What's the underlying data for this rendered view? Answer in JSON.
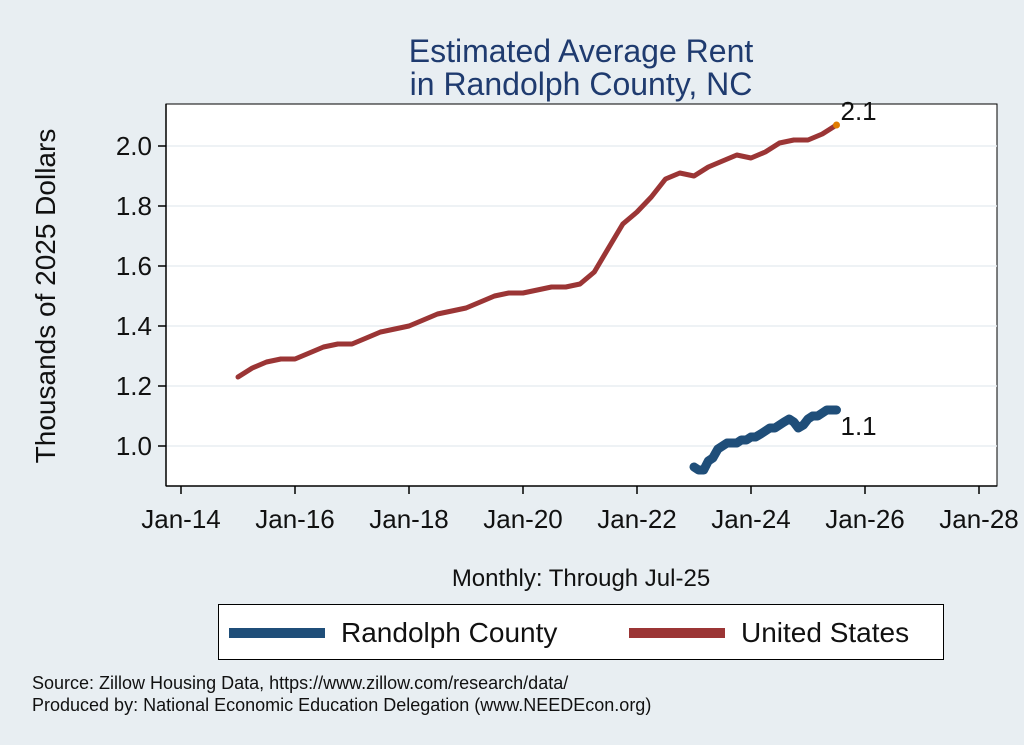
{
  "chart_data": {
    "type": "line",
    "title": [
      "Estimated Average Rent",
      "in Randolph County, NC"
    ],
    "xlabel": "Monthly: Through Jul-25",
    "ylabel": "Thousands of 2025 Dollars",
    "xlim": [
      2014,
      2028
    ],
    "ylim": [
      0.9,
      2.13
    ],
    "x_ticks": [
      2014,
      2016,
      2018,
      2020,
      2022,
      2024,
      2026,
      2028
    ],
    "x_tick_labels": [
      "Jan-14",
      "Jan-16",
      "Jan-18",
      "Jan-20",
      "Jan-22",
      "Jan-24",
      "Jan-26",
      "Jan-28"
    ],
    "y_ticks": [
      1.0,
      1.2,
      1.4,
      1.6,
      1.8,
      2.0
    ],
    "y_tick_labels": [
      "1.0",
      "1.2",
      "1.4",
      "1.6",
      "1.8",
      "2.0"
    ],
    "grid": true,
    "legend_position": "bottom",
    "series": [
      {
        "name": "Randolph County",
        "color": "#1f4e79",
        "end_label": "1.1",
        "x": [
          2023.0,
          2023.08,
          2023.17,
          2023.25,
          2023.33,
          2023.42,
          2023.5,
          2023.58,
          2023.67,
          2023.75,
          2023.83,
          2023.92,
          2024.0,
          2024.08,
          2024.17,
          2024.25,
          2024.33,
          2024.42,
          2024.5,
          2024.58,
          2024.67,
          2024.75,
          2024.83,
          2024.92,
          2025.0,
          2025.08,
          2025.17,
          2025.25,
          2025.33,
          2025.42,
          2025.5
        ],
        "y": [
          0.93,
          0.92,
          0.92,
          0.95,
          0.96,
          0.99,
          1.0,
          1.01,
          1.01,
          1.01,
          1.02,
          1.02,
          1.03,
          1.03,
          1.04,
          1.05,
          1.06,
          1.06,
          1.07,
          1.08,
          1.09,
          1.08,
          1.06,
          1.07,
          1.09,
          1.1,
          1.1,
          1.11,
          1.12,
          1.12,
          1.12
        ]
      },
      {
        "name": "United States",
        "color": "#9b3535",
        "end_label": "2.1",
        "x": [
          2015.0,
          2015.25,
          2015.5,
          2015.75,
          2016.0,
          2016.25,
          2016.5,
          2016.75,
          2017.0,
          2017.25,
          2017.5,
          2017.75,
          2018.0,
          2018.25,
          2018.5,
          2018.75,
          2019.0,
          2019.25,
          2019.5,
          2019.75,
          2020.0,
          2020.25,
          2020.5,
          2020.75,
          2021.0,
          2021.25,
          2021.5,
          2021.75,
          2022.0,
          2022.25,
          2022.5,
          2022.75,
          2023.0,
          2023.25,
          2023.5,
          2023.75,
          2024.0,
          2024.25,
          2024.5,
          2024.75,
          2025.0,
          2025.25,
          2025.5
        ],
        "y": [
          1.23,
          1.26,
          1.28,
          1.29,
          1.29,
          1.31,
          1.33,
          1.34,
          1.34,
          1.36,
          1.38,
          1.39,
          1.4,
          1.42,
          1.44,
          1.45,
          1.46,
          1.48,
          1.5,
          1.51,
          1.51,
          1.52,
          1.53,
          1.53,
          1.54,
          1.58,
          1.66,
          1.74,
          1.78,
          1.83,
          1.89,
          1.91,
          1.9,
          1.93,
          1.95,
          1.97,
          1.96,
          1.98,
          2.01,
          2.02,
          2.02,
          2.04,
          2.07
        ]
      }
    ]
  },
  "footer": {
    "source": "Source: Zillow Housing Data, https://www.zillow.com/research/data/",
    "producer": "Produced by: National Economic Education Delegation (www.NEEDEcon.org)"
  }
}
